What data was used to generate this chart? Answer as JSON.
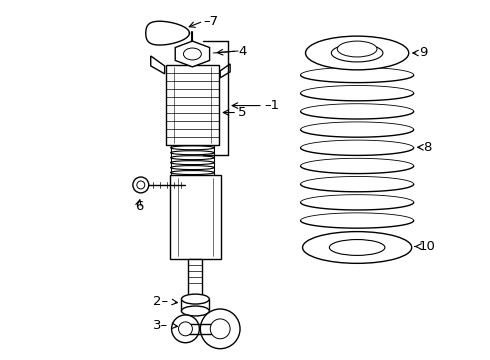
{
  "bg_color": "#ffffff",
  "line_color": "#000000",
  "label_color": "#000000",
  "fig_width": 4.9,
  "fig_height": 3.6,
  "dpi": 100
}
